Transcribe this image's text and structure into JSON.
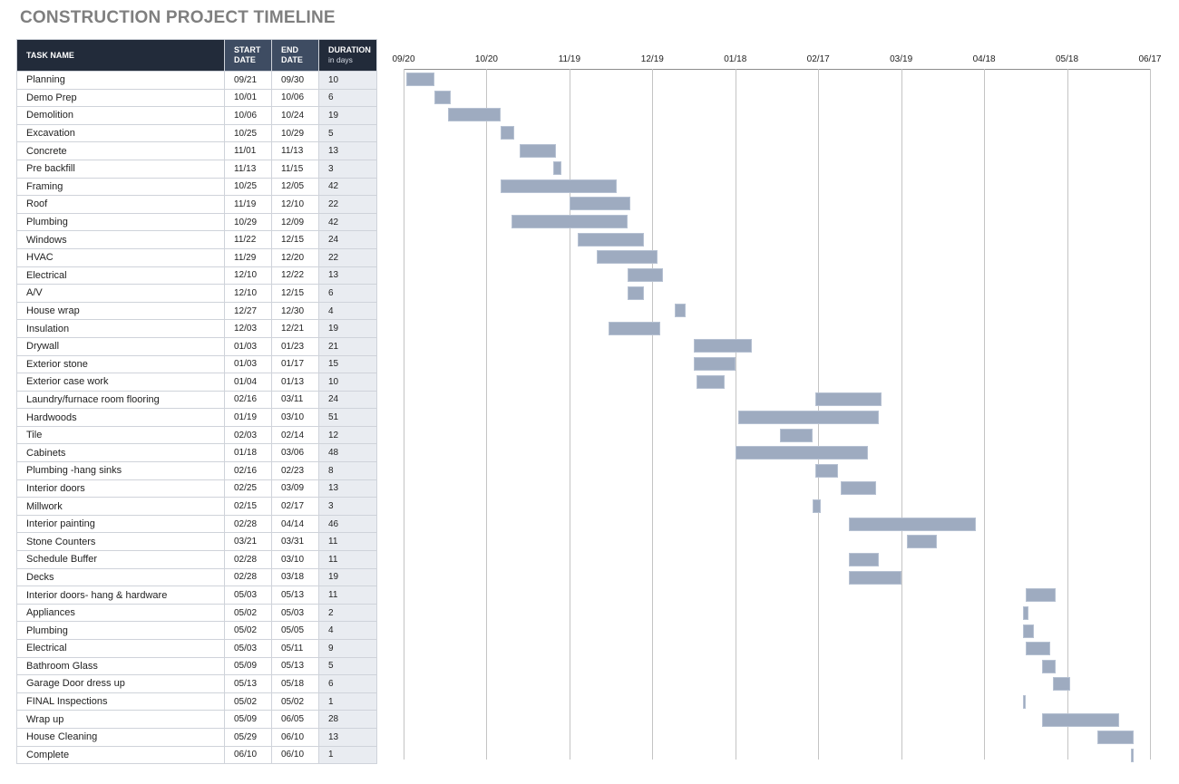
{
  "title": "CONSTRUCTION PROJECT TIMELINE",
  "table": {
    "headers": {
      "task": "TASK NAME",
      "start_line1": "START",
      "start_line2": "DATE",
      "end_line1": "END",
      "end_line2": "DATE",
      "duration": "DURATION",
      "duration_sub": "in days"
    },
    "rows": [
      {
        "task": "Planning",
        "start": "09/21",
        "end": "09/30",
        "duration": "10"
      },
      {
        "task": "Demo Prep",
        "start": "10/01",
        "end": "10/06",
        "duration": "6"
      },
      {
        "task": "Demolition",
        "start": "10/06",
        "end": "10/24",
        "duration": "19"
      },
      {
        "task": "Excavation",
        "start": "10/25",
        "end": "10/29",
        "duration": "5"
      },
      {
        "task": "Concrete",
        "start": "11/01",
        "end": "11/13",
        "duration": "13"
      },
      {
        "task": "Pre backfill",
        "start": "11/13",
        "end": "11/15",
        "duration": "3"
      },
      {
        "task": "Framing",
        "start": "10/25",
        "end": "12/05",
        "duration": "42"
      },
      {
        "task": "Roof",
        "start": "11/19",
        "end": "12/10",
        "duration": "22"
      },
      {
        "task": "Plumbing",
        "start": "10/29",
        "end": "12/09",
        "duration": "42"
      },
      {
        "task": "Windows",
        "start": "11/22",
        "end": "12/15",
        "duration": "24"
      },
      {
        "task": "HVAC",
        "start": "11/29",
        "end": "12/20",
        "duration": "22"
      },
      {
        "task": "Electrical",
        "start": "12/10",
        "end": "12/22",
        "duration": "13"
      },
      {
        "task": "A/V",
        "start": "12/10",
        "end": "12/15",
        "duration": "6"
      },
      {
        "task": "House wrap",
        "start": "12/27",
        "end": "12/30",
        "duration": "4"
      },
      {
        "task": "Insulation",
        "start": "12/03",
        "end": "12/21",
        "duration": "19"
      },
      {
        "task": "Drywall",
        "start": "01/03",
        "end": "01/23",
        "duration": "21"
      },
      {
        "task": "Exterior stone",
        "start": "01/03",
        "end": "01/17",
        "duration": "15"
      },
      {
        "task": "Exterior case work",
        "start": "01/04",
        "end": "01/13",
        "duration": "10"
      },
      {
        "task": "Laundry/furnace room flooring",
        "start": "02/16",
        "end": "03/11",
        "duration": "24"
      },
      {
        "task": "Hardwoods",
        "start": "01/19",
        "end": "03/10",
        "duration": "51"
      },
      {
        "task": "Tile",
        "start": "02/03",
        "end": "02/14",
        "duration": "12"
      },
      {
        "task": "Cabinets",
        "start": "01/18",
        "end": "03/06",
        "duration": "48"
      },
      {
        "task": "Plumbing -hang sinks",
        "start": "02/16",
        "end": "02/23",
        "duration": "8"
      },
      {
        "task": "Interior doors",
        "start": "02/25",
        "end": "03/09",
        "duration": "13"
      },
      {
        "task": "Millwork",
        "start": "02/15",
        "end": "02/17",
        "duration": "3"
      },
      {
        "task": "Interior painting",
        "start": "02/28",
        "end": "04/14",
        "duration": "46"
      },
      {
        "task": "Stone Counters",
        "start": "03/21",
        "end": "03/31",
        "duration": "11"
      },
      {
        "task": "Schedule Buffer",
        "start": "02/28",
        "end": "03/10",
        "duration": "11"
      },
      {
        "task": "Decks",
        "start": "02/28",
        "end": "03/18",
        "duration": "19"
      },
      {
        "task": "Interior doors- hang & hardware",
        "start": "05/03",
        "end": "05/13",
        "duration": "11"
      },
      {
        "task": "Appliances",
        "start": "05/02",
        "end": "05/03",
        "duration": "2"
      },
      {
        "task": "Plumbing",
        "start": "05/02",
        "end": "05/05",
        "duration": "4"
      },
      {
        "task": "Electrical",
        "start": "05/03",
        "end": "05/11",
        "duration": "9"
      },
      {
        "task": "Bathroom Glass",
        "start": "05/09",
        "end": "05/13",
        "duration": "5"
      },
      {
        "task": "Garage Door dress up",
        "start": "05/13",
        "end": "05/18",
        "duration": "6"
      },
      {
        "task": "FINAL Inspections",
        "start": "05/02",
        "end": "05/02",
        "duration": "1"
      },
      {
        "task": "Wrap up",
        "start": "05/09",
        "end": "06/05",
        "duration": "28"
      },
      {
        "task": "House Cleaning",
        "start": "05/29",
        "end": "06/10",
        "duration": "13"
      },
      {
        "task": "Complete",
        "start": "06/10",
        "end": "06/10",
        "duration": "1"
      }
    ]
  },
  "colors": {
    "header_dark": "#222b3a",
    "header_mid": "#3e4c62",
    "duration_bg": "#e9ecf1",
    "bar": "#9eabc0",
    "title": "#7f7f7f",
    "grid": "#c4c4c4"
  },
  "chart_data": {
    "type": "gantt",
    "title": "CONSTRUCTION PROJECT TIMELINE",
    "x_ticks": [
      "09/20",
      "10/20",
      "11/19",
      "12/19",
      "01/18",
      "02/17",
      "03/19",
      "04/18",
      "05/18",
      "06/17"
    ],
    "x_tick_day_offsets": [
      0,
      30,
      60,
      90,
      120,
      150,
      180,
      210,
      240,
      270
    ],
    "grid": true,
    "bars": [
      {
        "task": "Planning",
        "start_day": 1,
        "duration": 10
      },
      {
        "task": "Demo Prep",
        "start_day": 11,
        "duration": 6
      },
      {
        "task": "Demolition",
        "start_day": 16,
        "duration": 19
      },
      {
        "task": "Excavation",
        "start_day": 35,
        "duration": 5
      },
      {
        "task": "Concrete",
        "start_day": 42,
        "duration": 13
      },
      {
        "task": "Pre backfill",
        "start_day": 54,
        "duration": 3
      },
      {
        "task": "Framing",
        "start_day": 35,
        "duration": 42
      },
      {
        "task": "Roof",
        "start_day": 60,
        "duration": 22
      },
      {
        "task": "Plumbing",
        "start_day": 39,
        "duration": 42
      },
      {
        "task": "Windows",
        "start_day": 63,
        "duration": 24
      },
      {
        "task": "HVAC",
        "start_day": 70,
        "duration": 22
      },
      {
        "task": "Electrical",
        "start_day": 81,
        "duration": 13
      },
      {
        "task": "A/V",
        "start_day": 81,
        "duration": 6
      },
      {
        "task": "House wrap",
        "start_day": 98,
        "duration": 4
      },
      {
        "task": "Insulation",
        "start_day": 74,
        "duration": 19
      },
      {
        "task": "Drywall",
        "start_day": 105,
        "duration": 21
      },
      {
        "task": "Exterior stone",
        "start_day": 105,
        "duration": 15
      },
      {
        "task": "Exterior case work",
        "start_day": 106,
        "duration": 10
      },
      {
        "task": "Laundry/furnace room flooring",
        "start_day": 149,
        "duration": 24
      },
      {
        "task": "Hardwoods",
        "start_day": 121,
        "duration": 51
      },
      {
        "task": "Tile",
        "start_day": 136,
        "duration": 12
      },
      {
        "task": "Cabinets",
        "start_day": 120,
        "duration": 48
      },
      {
        "task": "Plumbing -hang sinks",
        "start_day": 149,
        "duration": 8
      },
      {
        "task": "Interior doors",
        "start_day": 158,
        "duration": 13
      },
      {
        "task": "Millwork",
        "start_day": 148,
        "duration": 3
      },
      {
        "task": "Interior painting",
        "start_day": 161,
        "duration": 46
      },
      {
        "task": "Stone Counters",
        "start_day": 182,
        "duration": 11
      },
      {
        "task": "Schedule Buffer",
        "start_day": 161,
        "duration": 11
      },
      {
        "task": "Decks",
        "start_day": 161,
        "duration": 19
      },
      {
        "task": "Interior doors- hang & hardware",
        "start_day": 225,
        "duration": 11
      },
      {
        "task": "Appliances",
        "start_day": 224,
        "duration": 2
      },
      {
        "task": "Plumbing",
        "start_day": 224,
        "duration": 4
      },
      {
        "task": "Electrical",
        "start_day": 225,
        "duration": 9
      },
      {
        "task": "Bathroom Glass",
        "start_day": 231,
        "duration": 5
      },
      {
        "task": "Garage Door dress up",
        "start_day": 235,
        "duration": 6
      },
      {
        "task": "FINAL Inspections",
        "start_day": 224,
        "duration": 1
      },
      {
        "task": "Wrap up",
        "start_day": 231,
        "duration": 28
      },
      {
        "task": "House Cleaning",
        "start_day": 251,
        "duration": 13
      },
      {
        "task": "Complete",
        "start_day": 263,
        "duration": 1
      }
    ],
    "xlabel": "",
    "ylabel": ""
  }
}
